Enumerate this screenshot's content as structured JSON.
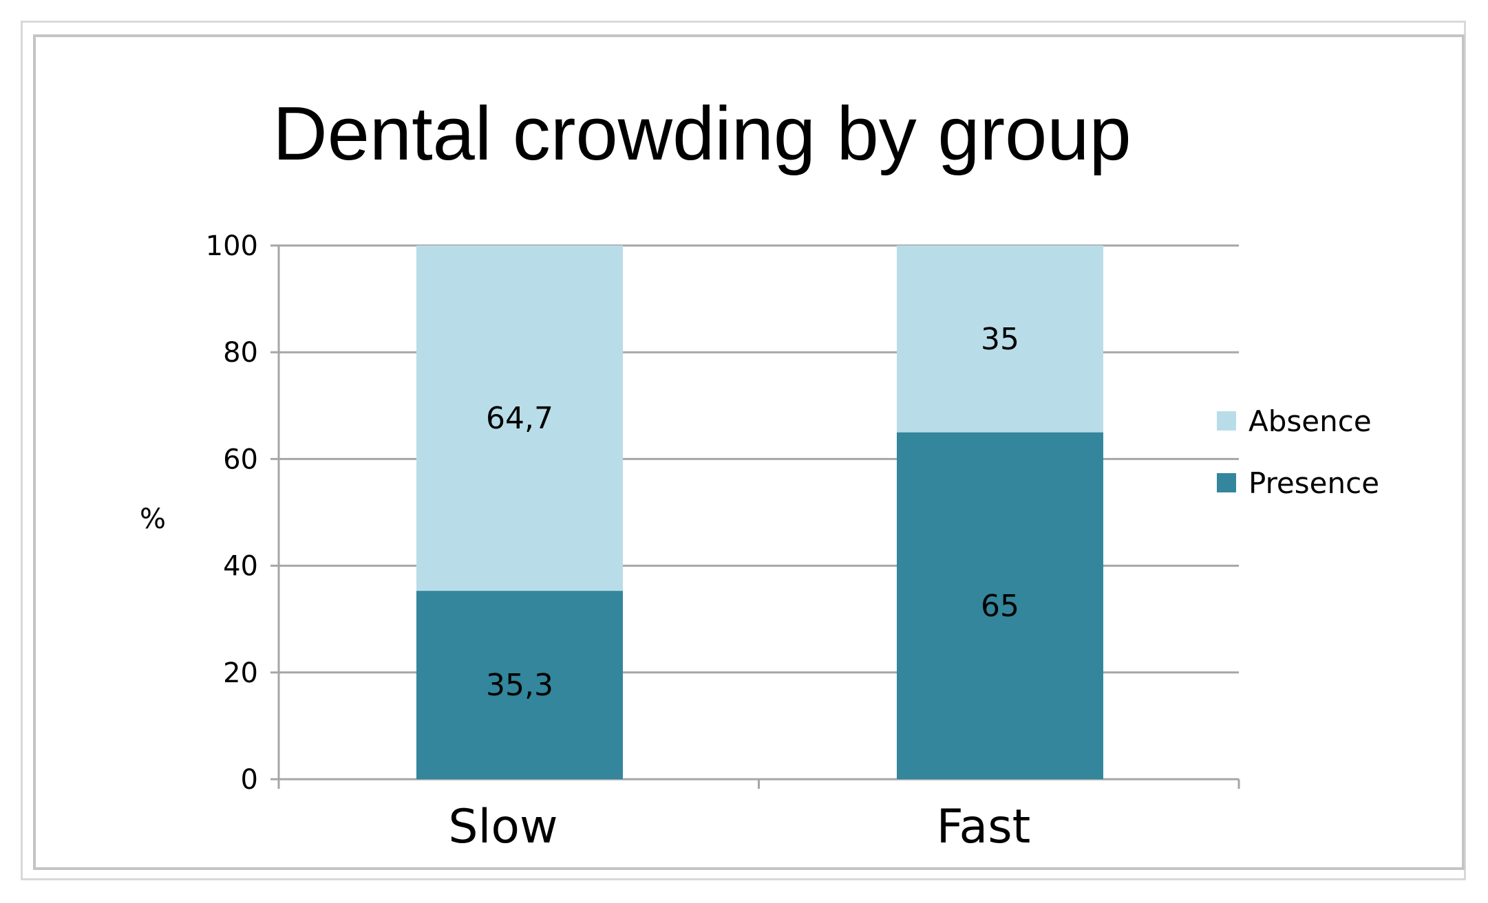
{
  "chart_data": {
    "type": "bar",
    "stacked": true,
    "title": "Dental crowding by group",
    "xlabel": "",
    "ylabel": "%",
    "ylim": [
      0,
      100
    ],
    "yticks": [
      0,
      20,
      40,
      60,
      80,
      100
    ],
    "categories": [
      "Slow",
      "Fast"
    ],
    "series": [
      {
        "name": "Presence",
        "values": [
          35.3,
          65
        ],
        "labels": [
          "35,3",
          "65"
        ],
        "color": "#33869b"
      },
      {
        "name": "Absence",
        "values": [
          64.7,
          35
        ],
        "labels": [
          "64,7",
          "35"
        ],
        "color": "#b8dde8"
      }
    ],
    "legend_order": [
      "Absence",
      "Presence"
    ],
    "legend_position": "right",
    "grid": true,
    "grid_color": "#a6a6a6",
    "axis_color": "#a6a6a6"
  }
}
